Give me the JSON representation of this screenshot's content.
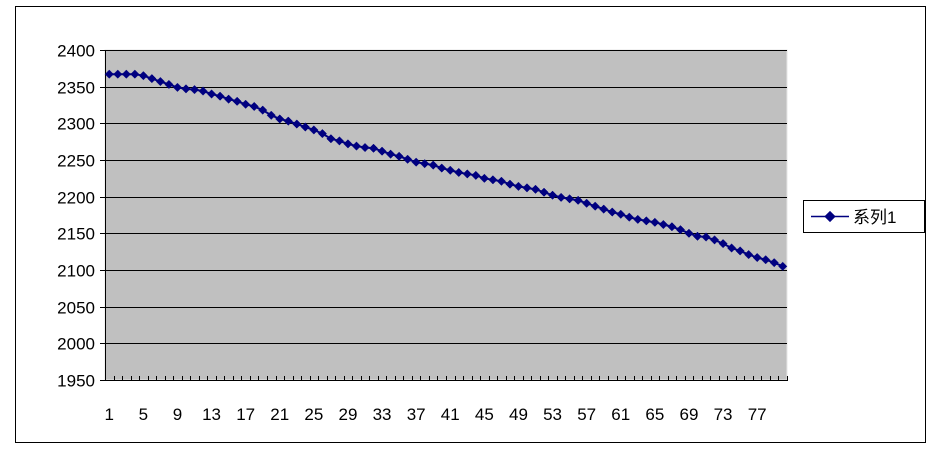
{
  "chart_data": {
    "type": "line",
    "title": "",
    "xlabel": "",
    "ylabel": "",
    "ylim": [
      1950,
      2400
    ],
    "yticks": [
      1950,
      2000,
      2050,
      2100,
      2150,
      2200,
      2250,
      2300,
      2350,
      2400
    ],
    "x": [
      1,
      2,
      3,
      4,
      5,
      6,
      7,
      8,
      9,
      10,
      11,
      12,
      13,
      14,
      15,
      16,
      17,
      18,
      19,
      20,
      21,
      22,
      23,
      24,
      25,
      26,
      27,
      28,
      29,
      30,
      31,
      32,
      33,
      34,
      35,
      36,
      37,
      38,
      39,
      40,
      41,
      42,
      43,
      44,
      45,
      46,
      47,
      48,
      49,
      50,
      51,
      52,
      53,
      54,
      55,
      56,
      57,
      58,
      59,
      60,
      61,
      62,
      63,
      64,
      65,
      66,
      67,
      68,
      69,
      70,
      71,
      72,
      73,
      74,
      75,
      76,
      77,
      78,
      79,
      80
    ],
    "xtick_labels": [
      "1",
      "5",
      "9",
      "13",
      "17",
      "21",
      "25",
      "29",
      "33",
      "37",
      "41",
      "45",
      "49",
      "53",
      "57",
      "61",
      "65",
      "69",
      "73",
      "77"
    ],
    "grid": true,
    "legend_position": "right",
    "plot_background": "#c0c0c0",
    "series": [
      {
        "name": "系列1",
        "color": "#000080",
        "marker": "diamond",
        "values": [
          2367,
          2367,
          2367,
          2367,
          2365,
          2361,
          2357,
          2353,
          2349,
          2347,
          2346,
          2344,
          2340,
          2337,
          2333,
          2330,
          2326,
          2323,
          2318,
          2311,
          2306,
          2303,
          2299,
          2295,
          2291,
          2286,
          2279,
          2276,
          2272,
          2269,
          2267,
          2266,
          2262,
          2258,
          2255,
          2251,
          2247,
          2245,
          2243,
          2239,
          2236,
          2233,
          2231,
          2229,
          2225,
          2223,
          2221,
          2217,
          2214,
          2212,
          2210,
          2206,
          2202,
          2199,
          2197,
          2195,
          2191,
          2187,
          2183,
          2179,
          2176,
          2172,
          2169,
          2167,
          2165,
          2162,
          2159,
          2155,
          2150,
          2146,
          2145,
          2141,
          2136,
          2130,
          2126,
          2121,
          2117,
          2114,
          2110,
          2105
        ]
      }
    ]
  }
}
